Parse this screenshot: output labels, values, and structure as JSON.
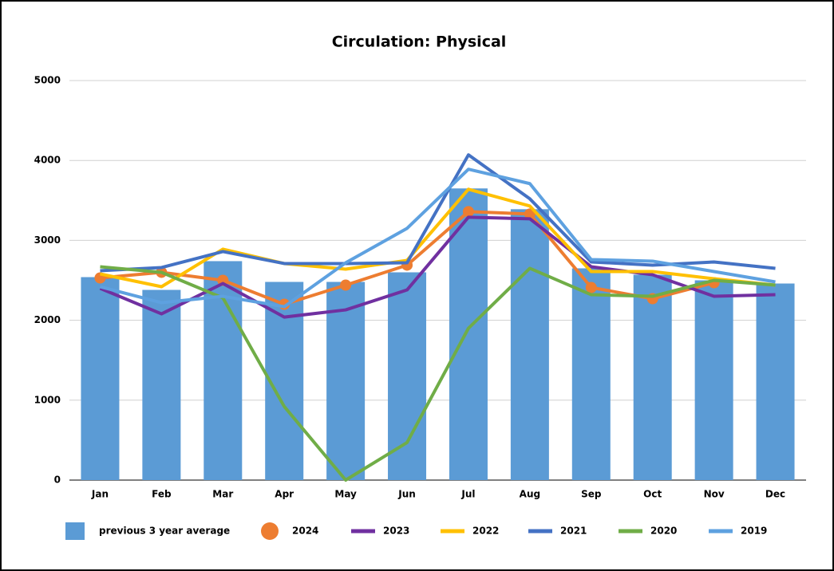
{
  "chart_data": {
    "type": "bar",
    "title": "Circulation: Physical",
    "categories": [
      "Jan",
      "Feb",
      "Mar",
      "Apr",
      "May",
      "Jun",
      "Jul",
      "Aug",
      "Sep",
      "Oct",
      "Nov",
      "Dec"
    ],
    "ylim": [
      0,
      5000
    ],
    "yticks": [
      0,
      1000,
      2000,
      3000,
      4000,
      5000
    ],
    "grid": true,
    "legend": "bottom",
    "series": [
      {
        "name": "previous 3 year average",
        "type": "bar",
        "color": "#5b9bd5",
        "values": [
          2540,
          2380,
          2740,
          2480,
          2480,
          2600,
          3650,
          3390,
          2650,
          2570,
          2500,
          2460
        ]
      },
      {
        "name": "2024",
        "type": "line",
        "markers": true,
        "color": "#ed7d31",
        "values": [
          2530,
          2600,
          2500,
          2200,
          2440,
          2690,
          3360,
          3330,
          2410,
          2270,
          2470,
          null
        ]
      },
      {
        "name": "2023",
        "type": "line",
        "color": "#7030a0",
        "values": [
          2400,
          2080,
          2460,
          2040,
          2130,
          2380,
          3290,
          3270,
          2670,
          2570,
          2300,
          2320
        ]
      },
      {
        "name": "2022",
        "type": "line",
        "color": "#ffc000",
        "values": [
          2580,
          2420,
          2890,
          2710,
          2640,
          2750,
          3640,
          3430,
          2610,
          2610,
          2520,
          2440
        ]
      },
      {
        "name": "2021",
        "type": "line",
        "color": "#4472c4",
        "values": [
          2620,
          2660,
          2860,
          2710,
          2710,
          2720,
          4070,
          3520,
          2730,
          2690,
          2730,
          2650
        ]
      },
      {
        "name": "2020",
        "type": "line",
        "color": "#70ad47",
        "values": [
          2670,
          2600,
          2280,
          920,
          0,
          470,
          1900,
          2650,
          2320,
          2300,
          2500,
          2440
        ]
      },
      {
        "name": "2019",
        "type": "line",
        "color": "#5ea1e0",
        "values": [
          2420,
          2220,
          2300,
          2170,
          2720,
          3150,
          3890,
          3710,
          2760,
          2740,
          2610,
          2480
        ]
      }
    ]
  }
}
